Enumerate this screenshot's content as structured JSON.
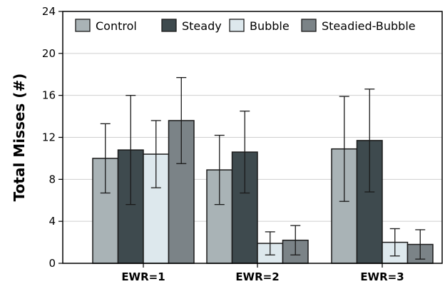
{
  "chart_data": {
    "type": "bar",
    "title": "",
    "xlabel": "",
    "ylabel": "Total Misses (#)",
    "ylim": [
      0,
      24
    ],
    "yticks": [
      0,
      4,
      8,
      12,
      16,
      20,
      24
    ],
    "categories": [
      "EWR=1",
      "EWR=2",
      "EWR=3"
    ],
    "grid": "horizontal",
    "legend_position": "top",
    "series": [
      {
        "name": "Control",
        "color": "#a9b3b6",
        "values": [
          10.0,
          8.9,
          10.9
        ],
        "errors": [
          3.3,
          3.3,
          5.0
        ]
      },
      {
        "name": "Steady",
        "color": "#3e4a4e",
        "values": [
          10.8,
          10.6,
          11.7
        ],
        "errors": [
          5.2,
          3.9,
          4.9
        ]
      },
      {
        "name": "Bubble",
        "color": "#dde8ed",
        "values": [
          10.4,
          1.9,
          2.0
        ],
        "errors": [
          3.2,
          1.1,
          1.3
        ]
      },
      {
        "name": "Steadied-Bubble",
        "color": "#7b8387",
        "values": [
          13.6,
          2.2,
          1.8
        ],
        "errors": [
          4.1,
          1.4,
          1.4
        ]
      }
    ]
  }
}
